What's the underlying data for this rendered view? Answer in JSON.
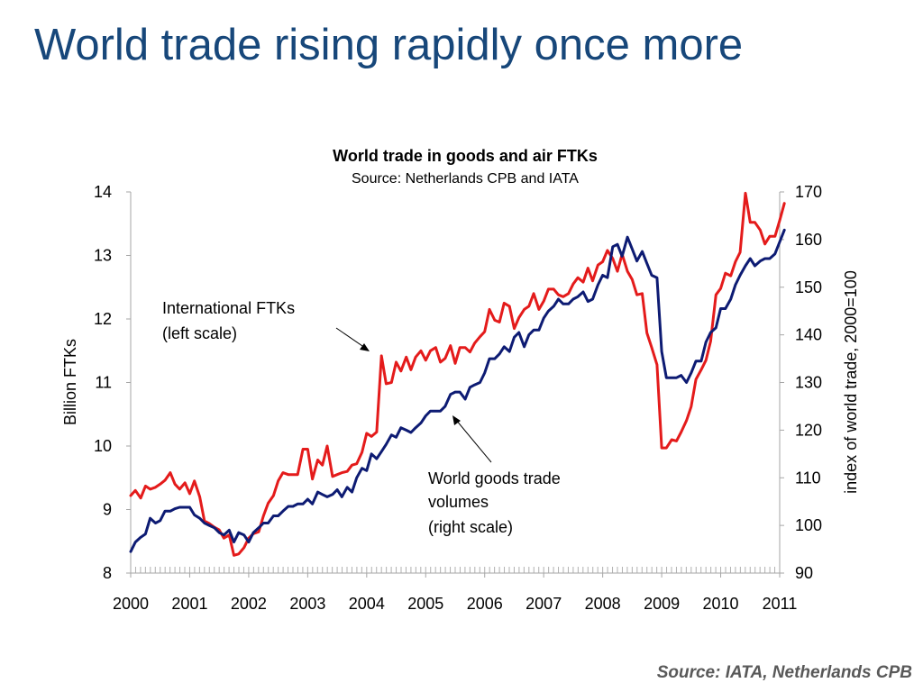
{
  "slide": {
    "title": "World trade rising rapidly once more",
    "source_note": "Source: IATA, Netherlands CPB"
  },
  "chart_data": {
    "type": "line",
    "title": "World trade in goods and air FTKs",
    "subtitle": "Source: Netherlands CPB and IATA",
    "x_ticks": [
      2000,
      2001,
      2002,
      2003,
      2004,
      2005,
      2006,
      2007,
      2008,
      2009,
      2010,
      2011
    ],
    "xlim": [
      2000,
      2011
    ],
    "ylabel_left": "Billion FTKs",
    "ylim_left": [
      8,
      14
    ],
    "yticks_left": [
      8,
      9,
      10,
      11,
      12,
      13,
      14
    ],
    "ylabel_right": "index of world trade, 2000=100",
    "ylim_right": [
      90,
      170
    ],
    "yticks_right": [
      90,
      100,
      110,
      120,
      130,
      140,
      150,
      160,
      170
    ],
    "grid": false,
    "colors": {
      "ftk": "#e41b1b",
      "trade": "#0d1b73"
    },
    "annotations": [
      {
        "text_lines": [
          "International FTKs",
          "(left scale)"
        ]
      },
      {
        "text_lines": [
          "World goods trade",
          "volumes",
          "(right scale)"
        ]
      }
    ],
    "series": [
      {
        "axis": "left",
        "points": [
          [
            2000.0,
            9.22
          ],
          [
            2000.08,
            9.3
          ],
          [
            2000.17,
            9.18
          ],
          [
            2000.25,
            9.37
          ],
          [
            2000.33,
            9.32
          ],
          [
            2000.42,
            9.35
          ],
          [
            2000.5,
            9.4
          ],
          [
            2000.58,
            9.46
          ],
          [
            2000.67,
            9.58
          ],
          [
            2000.75,
            9.4
          ],
          [
            2000.83,
            9.32
          ],
          [
            2000.92,
            9.42
          ],
          [
            2001.0,
            9.25
          ],
          [
            2001.08,
            9.45
          ],
          [
            2001.17,
            9.2
          ],
          [
            2001.25,
            8.82
          ],
          [
            2001.33,
            8.78
          ],
          [
            2001.42,
            8.72
          ],
          [
            2001.5,
            8.68
          ],
          [
            2001.58,
            8.55
          ],
          [
            2001.67,
            8.6
          ],
          [
            2001.75,
            8.28
          ],
          [
            2001.83,
            8.3
          ],
          [
            2001.92,
            8.4
          ],
          [
            2002.0,
            8.55
          ],
          [
            2002.08,
            8.62
          ],
          [
            2002.17,
            8.65
          ],
          [
            2002.25,
            8.9
          ],
          [
            2002.33,
            9.1
          ],
          [
            2002.42,
            9.22
          ],
          [
            2002.5,
            9.45
          ],
          [
            2002.58,
            9.58
          ],
          [
            2002.67,
            9.55
          ],
          [
            2002.75,
            9.55
          ],
          [
            2002.83,
            9.55
          ],
          [
            2002.92,
            9.95
          ],
          [
            2003.0,
            9.95
          ],
          [
            2003.08,
            9.48
          ],
          [
            2003.17,
            9.78
          ],
          [
            2003.25,
            9.7
          ],
          [
            2003.33,
            10.0
          ],
          [
            2003.42,
            9.52
          ],
          [
            2003.5,
            9.55
          ],
          [
            2003.58,
            9.58
          ],
          [
            2003.67,
            9.6
          ],
          [
            2003.75,
            9.7
          ],
          [
            2003.83,
            9.72
          ],
          [
            2003.92,
            9.9
          ],
          [
            2004.0,
            10.2
          ],
          [
            2004.08,
            10.15
          ],
          [
            2004.17,
            10.22
          ],
          [
            2004.25,
            11.42
          ],
          [
            2004.33,
            10.98
          ],
          [
            2004.42,
            11.0
          ],
          [
            2004.5,
            11.32
          ],
          [
            2004.58,
            11.18
          ],
          [
            2004.67,
            11.4
          ],
          [
            2004.75,
            11.2
          ],
          [
            2004.83,
            11.4
          ],
          [
            2004.92,
            11.5
          ],
          [
            2005.0,
            11.35
          ],
          [
            2005.08,
            11.5
          ],
          [
            2005.17,
            11.55
          ],
          [
            2005.25,
            11.32
          ],
          [
            2005.33,
            11.38
          ],
          [
            2005.42,
            11.58
          ],
          [
            2005.5,
            11.3
          ],
          [
            2005.58,
            11.55
          ],
          [
            2005.67,
            11.55
          ],
          [
            2005.75,
            11.48
          ],
          [
            2005.83,
            11.62
          ],
          [
            2005.92,
            11.72
          ],
          [
            2006.0,
            11.8
          ],
          [
            2006.08,
            12.15
          ],
          [
            2006.17,
            11.98
          ],
          [
            2006.25,
            11.95
          ],
          [
            2006.33,
            12.25
          ],
          [
            2006.42,
            12.2
          ],
          [
            2006.5,
            11.85
          ],
          [
            2006.58,
            12.02
          ],
          [
            2006.67,
            12.15
          ],
          [
            2006.75,
            12.2
          ],
          [
            2006.83,
            12.4
          ],
          [
            2006.92,
            12.15
          ],
          [
            2007.0,
            12.28
          ],
          [
            2007.08,
            12.47
          ],
          [
            2007.17,
            12.47
          ],
          [
            2007.25,
            12.38
          ],
          [
            2007.33,
            12.35
          ],
          [
            2007.42,
            12.4
          ],
          [
            2007.5,
            12.55
          ],
          [
            2007.58,
            12.65
          ],
          [
            2007.67,
            12.58
          ],
          [
            2007.75,
            12.8
          ],
          [
            2007.83,
            12.6
          ],
          [
            2007.92,
            12.85
          ],
          [
            2008.0,
            12.9
          ],
          [
            2008.08,
            13.08
          ],
          [
            2008.17,
            12.95
          ],
          [
            2008.25,
            12.75
          ],
          [
            2008.33,
            13.02
          ],
          [
            2008.42,
            12.75
          ],
          [
            2008.5,
            12.62
          ],
          [
            2008.58,
            12.38
          ],
          [
            2008.67,
            12.4
          ],
          [
            2008.75,
            11.78
          ],
          [
            2008.83,
            11.55
          ],
          [
            2008.92,
            11.28
          ],
          [
            2009.0,
            9.97
          ],
          [
            2009.08,
            9.97
          ],
          [
            2009.17,
            10.1
          ],
          [
            2009.25,
            10.08
          ],
          [
            2009.33,
            10.22
          ],
          [
            2009.42,
            10.4
          ],
          [
            2009.5,
            10.62
          ],
          [
            2009.58,
            11.05
          ],
          [
            2009.67,
            11.2
          ],
          [
            2009.75,
            11.35
          ],
          [
            2009.83,
            11.65
          ],
          [
            2009.92,
            12.38
          ],
          [
            2010.0,
            12.48
          ],
          [
            2010.08,
            12.72
          ],
          [
            2010.17,
            12.68
          ],
          [
            2010.25,
            12.9
          ],
          [
            2010.33,
            13.05
          ],
          [
            2010.42,
            13.98
          ],
          [
            2010.5,
            13.52
          ],
          [
            2010.58,
            13.52
          ],
          [
            2010.67,
            13.4
          ],
          [
            2010.75,
            13.18
          ],
          [
            2010.83,
            13.3
          ],
          [
            2010.92,
            13.3
          ],
          [
            2011.0,
            13.55
          ],
          [
            2011.08,
            13.82
          ]
        ]
      },
      {
        "axis": "right",
        "points": [
          [
            2000.0,
            94.5
          ],
          [
            2000.08,
            96.5
          ],
          [
            2000.17,
            97.5
          ],
          [
            2000.25,
            98.2
          ],
          [
            2000.33,
            101.5
          ],
          [
            2000.42,
            100.5
          ],
          [
            2000.5,
            101.0
          ],
          [
            2000.58,
            103.0
          ],
          [
            2000.67,
            103.0
          ],
          [
            2000.75,
            103.5
          ],
          [
            2000.83,
            103.8
          ],
          [
            2000.92,
            103.8
          ],
          [
            2001.0,
            103.8
          ],
          [
            2001.08,
            102.2
          ],
          [
            2001.17,
            101.5
          ],
          [
            2001.25,
            100.5
          ],
          [
            2001.33,
            100.0
          ],
          [
            2001.42,
            99.5
          ],
          [
            2001.5,
            98.5
          ],
          [
            2001.58,
            98.0
          ],
          [
            2001.67,
            99.0
          ],
          [
            2001.75,
            96.5
          ],
          [
            2001.83,
            98.5
          ],
          [
            2001.92,
            98.0
          ],
          [
            2002.0,
            96.5
          ],
          [
            2002.08,
            98.5
          ],
          [
            2002.17,
            99.5
          ],
          [
            2002.25,
            100.5
          ],
          [
            2002.33,
            100.5
          ],
          [
            2002.42,
            102.0
          ],
          [
            2002.5,
            102.0
          ],
          [
            2002.58,
            103.0
          ],
          [
            2002.67,
            104.0
          ],
          [
            2002.75,
            104.0
          ],
          [
            2002.83,
            104.5
          ],
          [
            2002.92,
            104.5
          ],
          [
            2003.0,
            105.5
          ],
          [
            2003.08,
            104.5
          ],
          [
            2003.17,
            107.0
          ],
          [
            2003.25,
            106.5
          ],
          [
            2003.33,
            106.0
          ],
          [
            2003.42,
            106.5
          ],
          [
            2003.5,
            107.5
          ],
          [
            2003.58,
            106.0
          ],
          [
            2003.67,
            108.0
          ],
          [
            2003.75,
            107.0
          ],
          [
            2003.83,
            110.0
          ],
          [
            2003.92,
            112.0
          ],
          [
            2004.0,
            111.5
          ],
          [
            2004.08,
            115.0
          ],
          [
            2004.17,
            114.0
          ],
          [
            2004.25,
            115.5
          ],
          [
            2004.33,
            117.0
          ],
          [
            2004.42,
            119.0
          ],
          [
            2004.5,
            118.5
          ],
          [
            2004.58,
            120.5
          ],
          [
            2004.67,
            120.0
          ],
          [
            2004.75,
            119.5
          ],
          [
            2004.83,
            120.5
          ],
          [
            2004.92,
            121.5
          ],
          [
            2005.0,
            123.0
          ],
          [
            2005.08,
            124.0
          ],
          [
            2005.17,
            124.0
          ],
          [
            2005.25,
            124.0
          ],
          [
            2005.33,
            125.0
          ],
          [
            2005.42,
            127.5
          ],
          [
            2005.5,
            128.0
          ],
          [
            2005.58,
            128.0
          ],
          [
            2005.67,
            126.5
          ],
          [
            2005.75,
            129.0
          ],
          [
            2005.83,
            129.5
          ],
          [
            2005.92,
            130.0
          ],
          [
            2006.0,
            132.0
          ],
          [
            2006.08,
            135.0
          ],
          [
            2006.17,
            135.0
          ],
          [
            2006.25,
            136.0
          ],
          [
            2006.33,
            137.5
          ],
          [
            2006.42,
            136.5
          ],
          [
            2006.5,
            139.5
          ],
          [
            2006.58,
            140.5
          ],
          [
            2006.67,
            137.5
          ],
          [
            2006.75,
            140.0
          ],
          [
            2006.83,
            141.0
          ],
          [
            2006.92,
            141.0
          ],
          [
            2007.0,
            143.5
          ],
          [
            2007.08,
            145.0
          ],
          [
            2007.17,
            146.0
          ],
          [
            2007.25,
            147.5
          ],
          [
            2007.33,
            146.5
          ],
          [
            2007.42,
            146.5
          ],
          [
            2007.5,
            147.5
          ],
          [
            2007.58,
            148.0
          ],
          [
            2007.67,
            149.0
          ],
          [
            2007.75,
            147.0
          ],
          [
            2007.83,
            147.5
          ],
          [
            2007.92,
            150.5
          ],
          [
            2008.0,
            152.5
          ],
          [
            2008.08,
            152.0
          ],
          [
            2008.17,
            158.5
          ],
          [
            2008.25,
            159.0
          ],
          [
            2008.33,
            156.5
          ],
          [
            2008.42,
            160.5
          ],
          [
            2008.5,
            158.0
          ],
          [
            2008.58,
            155.5
          ],
          [
            2008.67,
            157.5
          ],
          [
            2008.75,
            155.0
          ],
          [
            2008.83,
            152.5
          ],
          [
            2008.92,
            152.0
          ],
          [
            2009.0,
            136.5
          ],
          [
            2009.08,
            131.0
          ],
          [
            2009.17,
            131.0
          ],
          [
            2009.25,
            131.0
          ],
          [
            2009.33,
            131.5
          ],
          [
            2009.42,
            130.0
          ],
          [
            2009.5,
            132.0
          ],
          [
            2009.58,
            134.5
          ],
          [
            2009.67,
            134.5
          ],
          [
            2009.75,
            138.5
          ],
          [
            2009.83,
            140.5
          ],
          [
            2009.92,
            141.5
          ],
          [
            2010.0,
            145.5
          ],
          [
            2010.08,
            145.5
          ],
          [
            2010.17,
            147.5
          ],
          [
            2010.25,
            150.5
          ],
          [
            2010.33,
            152.5
          ],
          [
            2010.42,
            154.5
          ],
          [
            2010.5,
            156.0
          ],
          [
            2010.58,
            154.5
          ],
          [
            2010.67,
            155.5
          ],
          [
            2010.75,
            156.0
          ],
          [
            2010.83,
            156.0
          ],
          [
            2010.92,
            157.0
          ],
          [
            2011.0,
            159.5
          ],
          [
            2011.08,
            162.0
          ]
        ]
      }
    ]
  }
}
